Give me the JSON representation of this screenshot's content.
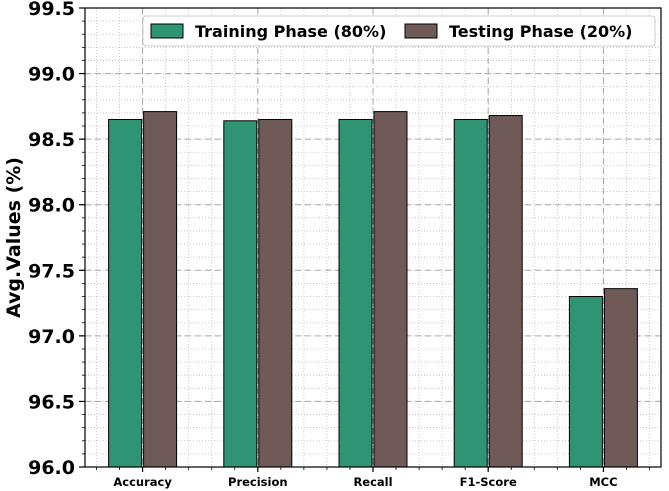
{
  "chart_data": {
    "type": "bar",
    "categories": [
      "Accuracy",
      "Precision",
      "Recall",
      "F1-Score",
      "MCC"
    ],
    "series": [
      {
        "name": "Training Phase (80%)",
        "color": "#2e9474",
        "values": [
          98.65,
          98.64,
          98.65,
          98.65,
          97.3
        ]
      },
      {
        "name": "Testing Phase (20%)",
        "color": "#705a58",
        "values": [
          98.71,
          98.65,
          98.71,
          98.68,
          97.36
        ]
      }
    ],
    "title": "",
    "xlabel": "",
    "ylabel": "Avg.Values (%)",
    "ylim": [
      96.0,
      99.5
    ],
    "yticks": [
      "96.0",
      "96.5",
      "97.0",
      "97.5",
      "98.0",
      "98.5",
      "99.0",
      "99.5"
    ],
    "grid": true,
    "legend_position": "top-right"
  }
}
